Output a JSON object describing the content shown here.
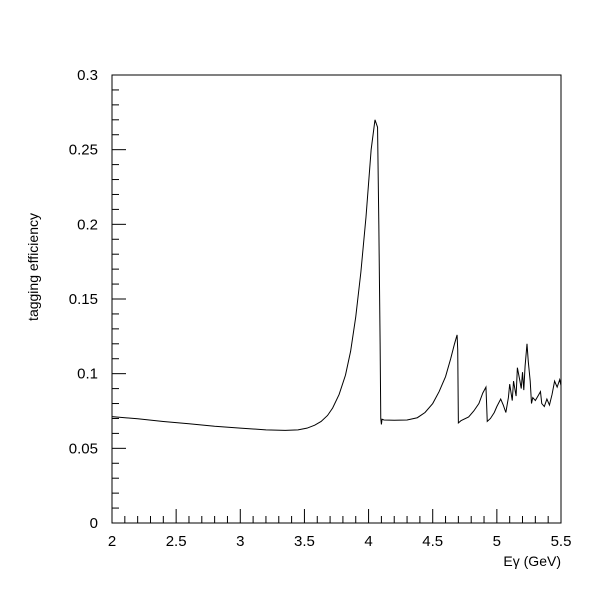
{
  "chart_data": {
    "type": "line",
    "title": "",
    "xlabel": "Eγ (GeV)",
    "ylabel": "tagging efficiency",
    "xlim": [
      2,
      5.5
    ],
    "ylim": [
      0,
      0.3
    ],
    "grid": false,
    "legend": "none",
    "x_ticks": [
      2,
      2.5,
      3,
      3.5,
      4,
      4.5,
      5,
      5.5
    ],
    "x_tick_labels": [
      "2",
      "2.5",
      "3",
      "3.5",
      "4",
      "4.5",
      "5",
      "5.5"
    ],
    "y_ticks": [
      0,
      0.05,
      0.1,
      0.15,
      0.2,
      0.25,
      0.3
    ],
    "y_tick_labels": [
      "0",
      "0.05",
      "0.1",
      "0.15",
      "0.2",
      "0.25",
      "0.3"
    ],
    "line_color": "#000000",
    "series": [
      {
        "x": [
          2.0,
          2.2,
          2.4,
          2.6,
          2.8,
          3.0,
          3.2,
          3.35,
          3.45,
          3.52,
          3.58,
          3.63,
          3.68,
          3.72,
          3.77,
          3.82,
          3.86,
          3.9,
          3.94,
          3.98,
          4.02,
          4.05,
          4.07,
          4.08,
          4.09,
          4.095,
          4.1,
          4.105,
          4.12,
          4.2,
          4.3,
          4.38,
          4.44,
          4.5,
          4.55,
          4.6,
          4.64,
          4.67,
          4.69,
          4.695,
          4.7,
          4.72,
          4.78,
          4.82,
          4.86,
          4.89,
          4.915,
          4.92,
          4.925,
          4.95,
          4.98,
          5.0,
          5.03,
          5.05,
          5.07,
          5.09,
          5.1,
          5.12,
          5.13,
          5.15,
          5.16,
          5.18,
          5.19,
          5.2,
          5.21,
          5.22,
          5.235,
          5.245,
          5.26,
          5.27,
          5.28,
          5.3,
          5.32,
          5.34,
          5.35,
          5.37,
          5.39,
          5.41,
          5.43,
          5.45,
          5.47,
          5.49,
          5.5
        ],
        "y": [
          0.0712,
          0.0698,
          0.068,
          0.0665,
          0.0648,
          0.0635,
          0.0624,
          0.062,
          0.0624,
          0.0635,
          0.0655,
          0.068,
          0.072,
          0.077,
          0.086,
          0.099,
          0.115,
          0.138,
          0.168,
          0.205,
          0.25,
          0.27,
          0.265,
          0.2,
          0.12,
          0.07,
          0.066,
          0.0695,
          0.069,
          0.0688,
          0.069,
          0.0705,
          0.074,
          0.08,
          0.088,
          0.098,
          0.11,
          0.12,
          0.126,
          0.116,
          0.067,
          0.0685,
          0.071,
          0.075,
          0.08,
          0.087,
          0.091,
          0.08,
          0.068,
          0.07,
          0.074,
          0.078,
          0.083,
          0.079,
          0.074,
          0.084,
          0.093,
          0.082,
          0.095,
          0.085,
          0.104,
          0.095,
          0.09,
          0.101,
          0.089,
          0.105,
          0.12,
          0.108,
          0.095,
          0.08,
          0.084,
          0.082,
          0.085,
          0.088,
          0.08,
          0.078,
          0.083,
          0.079,
          0.086,
          0.095,
          0.091,
          0.096,
          0.092
        ]
      }
    ]
  }
}
